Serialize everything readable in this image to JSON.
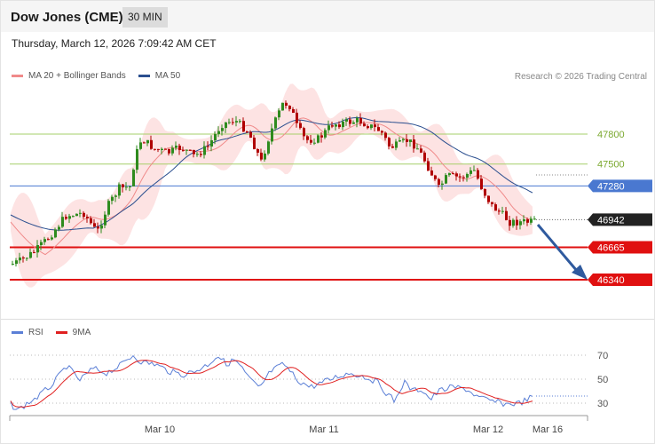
{
  "header": {
    "title": "Dow Jones (CME)",
    "interval": "30 MIN"
  },
  "datetime": "Thursday, March 12, 2026 7:09:42 AM CET",
  "legend_main": [
    {
      "label": "MA 20 + Bollinger Bands",
      "color": "#f08a8a"
    },
    {
      "label": "MA 50",
      "color": "#2b4f8f"
    }
  ],
  "credit": "Research © 2026 Trading Central",
  "levels": [
    {
      "value": "47800",
      "kind": "green"
    },
    {
      "value": "47500",
      "kind": "green"
    },
    {
      "value": "47280",
      "kind": "blue"
    },
    {
      "value": "46942",
      "kind": "current"
    },
    {
      "value": "46665",
      "kind": "red"
    },
    {
      "value": "46340",
      "kind": "red"
    }
  ],
  "legend_rsi": [
    {
      "label": "RSI",
      "color": "#5b7fd6"
    },
    {
      "label": "9MA",
      "color": "#e02020"
    }
  ],
  "rsi_ticks": [
    "70",
    "50",
    "30"
  ],
  "x_labels": [
    "Mar 10",
    "Mar 11",
    "Mar 12",
    "Mar 16"
  ],
  "colors": {
    "bull": "#2e8b1e",
    "bear": "#b00000",
    "band": "#fde3e3",
    "ma20": "#f08a8a",
    "ma50": "#2b4f8f",
    "green_line": "#a6cf6a",
    "blue_line": "#4a78d0",
    "red_line": "#e01010",
    "arrow": "#2f5a9e",
    "rsi": "#5b7fd6",
    "rsi_ma": "#e02020"
  },
  "chart_data": {
    "type": "candlestick",
    "price_levels": [
      47800,
      47500,
      47280,
      46942,
      46665,
      46340
    ],
    "target": 46340,
    "current": 46942,
    "rsi_levels": [
      70,
      50,
      30
    ],
    "x_labels": [
      "Mar 10",
      "Mar 11",
      "Mar 12",
      "Mar 16"
    ],
    "series": [
      {
        "name": "MA 20 + Bollinger Bands"
      },
      {
        "name": "MA 50"
      },
      {
        "name": "RSI"
      },
      {
        "name": "9MA"
      }
    ]
  }
}
